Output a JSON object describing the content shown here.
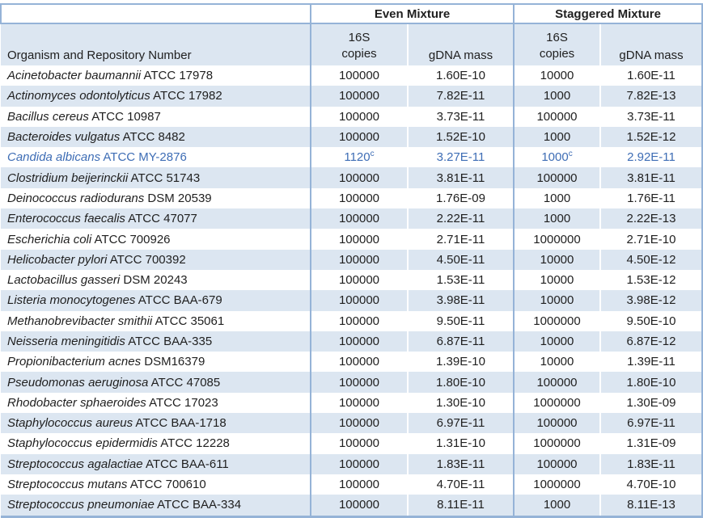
{
  "table": {
    "group_headers": {
      "even": "Even Mixture",
      "staggered": "Staggered Mixture"
    },
    "column_headers": {
      "organism": "Organism and Repository Number",
      "copies_line1": "16S",
      "copies_line2": "copies",
      "gdna": "gDNA mass"
    },
    "colors": {
      "band_blue": "#DCE6F1",
      "border_blue": "#95B3D7",
      "highlight_text_blue": "#3E6DB5"
    },
    "rows": [
      {
        "species": "Acinetobacter baumannii",
        "repository": "ATCC 17978",
        "even_copies": "100000",
        "even_copies_sup": "",
        "even_gdna": "1.60E-10",
        "stag_copies": "10000",
        "stag_copies_sup": "",
        "stag_gdna": "1.60E-11",
        "highlight": false
      },
      {
        "species": "Actinomyces odontolyticus",
        "repository": "ATCC 17982",
        "even_copies": "100000",
        "even_copies_sup": "",
        "even_gdna": "7.82E-11",
        "stag_copies": "1000",
        "stag_copies_sup": "",
        "stag_gdna": "7.82E-13",
        "highlight": false
      },
      {
        "species": "Bacillus cereus",
        "repository": "ATCC 10987",
        "even_copies": "100000",
        "even_copies_sup": "",
        "even_gdna": "3.73E-11",
        "stag_copies": "100000",
        "stag_copies_sup": "",
        "stag_gdna": "3.73E-11",
        "highlight": false
      },
      {
        "species": "Bacteroides vulgatus",
        "repository": "ATCC 8482",
        "even_copies": "100000",
        "even_copies_sup": "",
        "even_gdna": "1.52E-10",
        "stag_copies": "1000",
        "stag_copies_sup": "",
        "stag_gdna": "1.52E-12",
        "highlight": false
      },
      {
        "species": "Candida albicans",
        "repository": "ATCC MY-2876",
        "even_copies": "1120",
        "even_copies_sup": "c",
        "even_gdna": "3.27E-11",
        "stag_copies": "1000",
        "stag_copies_sup": "c",
        "stag_gdna": "2.92E-11",
        "highlight": true
      },
      {
        "species": "Clostridium beijerinckii",
        "repository": "ATCC 51743",
        "even_copies": "100000",
        "even_copies_sup": "",
        "even_gdna": "3.81E-11",
        "stag_copies": "100000",
        "stag_copies_sup": "",
        "stag_gdna": "3.81E-11",
        "highlight": false
      },
      {
        "species": "Deinococcus radiodurans",
        "repository": "DSM 20539",
        "even_copies": "100000",
        "even_copies_sup": "",
        "even_gdna": "1.76E-09",
        "stag_copies": "1000",
        "stag_copies_sup": "",
        "stag_gdna": "1.76E-11",
        "highlight": false
      },
      {
        "species": "Enterococcus faecalis",
        "repository": "ATCC 47077",
        "even_copies": "100000",
        "even_copies_sup": "",
        "even_gdna": "2.22E-11",
        "stag_copies": "1000",
        "stag_copies_sup": "",
        "stag_gdna": "2.22E-13",
        "highlight": false
      },
      {
        "species": "Escherichia coli",
        "repository": "ATCC 700926",
        "even_copies": "100000",
        "even_copies_sup": "",
        "even_gdna": "2.71E-11",
        "stag_copies": "1000000",
        "stag_copies_sup": "",
        "stag_gdna": "2.71E-10",
        "highlight": false
      },
      {
        "species": "Helicobacter pylori",
        "repository": "ATCC 700392",
        "even_copies": "100000",
        "even_copies_sup": "",
        "even_gdna": "4.50E-11",
        "stag_copies": "10000",
        "stag_copies_sup": "",
        "stag_gdna": "4.50E-12",
        "highlight": false
      },
      {
        "species": "Lactobacillus gasseri",
        "repository": "DSM 20243",
        "even_copies": "100000",
        "even_copies_sup": "",
        "even_gdna": "1.53E-11",
        "stag_copies": "10000",
        "stag_copies_sup": "",
        "stag_gdna": "1.53E-12",
        "highlight": false
      },
      {
        "species": "Listeria monocytogenes",
        "repository": "ATCC BAA-679",
        "even_copies": "100000",
        "even_copies_sup": "",
        "even_gdna": "3.98E-11",
        "stag_copies": "10000",
        "stag_copies_sup": "",
        "stag_gdna": "3.98E-12",
        "highlight": false
      },
      {
        "species": "Methanobrevibacter smithii",
        "repository": "ATCC 35061",
        "even_copies": "100000",
        "even_copies_sup": "",
        "even_gdna": "9.50E-11",
        "stag_copies": "1000000",
        "stag_copies_sup": "",
        "stag_gdna": "9.50E-10",
        "highlight": false
      },
      {
        "species": "Neisseria meningitidis",
        "repository": "ATCC BAA-335",
        "even_copies": "100000",
        "even_copies_sup": "",
        "even_gdna": "6.87E-11",
        "stag_copies": "10000",
        "stag_copies_sup": "",
        "stag_gdna": "6.87E-12",
        "highlight": false
      },
      {
        "species": "Propionibacterium acnes",
        "repository": "DSM16379",
        "even_copies": "100000",
        "even_copies_sup": "",
        "even_gdna": "1.39E-10",
        "stag_copies": "10000",
        "stag_copies_sup": "",
        "stag_gdna": "1.39E-11",
        "highlight": false
      },
      {
        "species": "Pseudomonas aeruginosa",
        "repository": "ATCC 47085",
        "even_copies": "100000",
        "even_copies_sup": "",
        "even_gdna": "1.80E-10",
        "stag_copies": "100000",
        "stag_copies_sup": "",
        "stag_gdna": "1.80E-10",
        "highlight": false
      },
      {
        "species": "Rhodobacter sphaeroides",
        "repository": "ATCC 17023",
        "even_copies": "100000",
        "even_copies_sup": "",
        "even_gdna": "1.30E-10",
        "stag_copies": "1000000",
        "stag_copies_sup": "",
        "stag_gdna": "1.30E-09",
        "highlight": false
      },
      {
        "species": "Staphylococcus aureus",
        "repository": "ATCC BAA-1718",
        "even_copies": "100000",
        "even_copies_sup": "",
        "even_gdna": "6.97E-11",
        "stag_copies": "100000",
        "stag_copies_sup": "",
        "stag_gdna": "6.97E-11",
        "highlight": false
      },
      {
        "species": "Staphylococcus epidermidis",
        "repository": "ATCC 12228",
        "even_copies": "100000",
        "even_copies_sup": "",
        "even_gdna": "1.31E-10",
        "stag_copies": "1000000",
        "stag_copies_sup": "",
        "stag_gdna": "1.31E-09",
        "highlight": false
      },
      {
        "species": "Streptococcus agalactiae",
        "repository": "ATCC BAA-611",
        "even_copies": "100000",
        "even_copies_sup": "",
        "even_gdna": "1.83E-11",
        "stag_copies": "100000",
        "stag_copies_sup": "",
        "stag_gdna": "1.83E-11",
        "highlight": false
      },
      {
        "species": "Streptococcus mutans",
        "repository": "ATCC 700610",
        "even_copies": "100000",
        "even_copies_sup": "",
        "even_gdna": "4.70E-11",
        "stag_copies": "1000000",
        "stag_copies_sup": "",
        "stag_gdna": "4.70E-10",
        "highlight": false
      },
      {
        "species": "Streptococcus pneumoniae",
        "repository": "ATCC BAA-334",
        "even_copies": "100000",
        "even_copies_sup": "",
        "even_gdna": "8.11E-11",
        "stag_copies": "1000",
        "stag_copies_sup": "",
        "stag_gdna": "8.11E-13",
        "highlight": false
      }
    ]
  }
}
